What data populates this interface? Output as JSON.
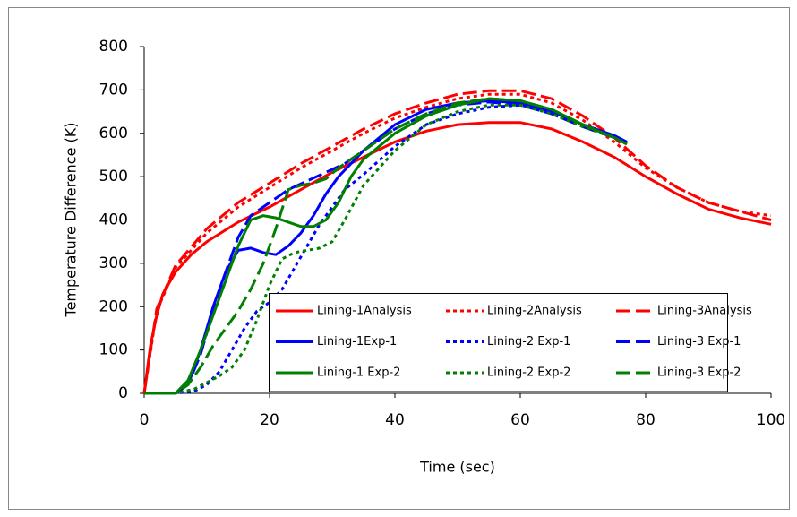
{
  "chart_data": {
    "type": "line",
    "xlabel": "Time (sec)",
    "ylabel": "Temperature Difference (K)",
    "xlim": [
      0,
      100
    ],
    "xticks": [
      0,
      20,
      40,
      60,
      80,
      100
    ],
    "ylim": [
      0,
      800
    ],
    "yticks": [
      0,
      100,
      200,
      300,
      400,
      500,
      600,
      700,
      800
    ],
    "grid": false,
    "legend": "lower right",
    "series": [
      {
        "name": "Lining-1Analysis",
        "color": "#ff0000",
        "dash": "solid",
        "x": [
          0,
          1,
          2,
          3,
          5,
          7.5,
          10,
          15,
          20,
          25,
          30,
          35,
          40,
          45,
          50,
          55,
          60,
          65,
          70,
          75,
          80,
          85,
          90,
          95,
          100
        ],
        "values": [
          0,
          110,
          180,
          230,
          280,
          320,
          350,
          395,
          430,
          470,
          510,
          545,
          580,
          605,
          620,
          625,
          625,
          610,
          580,
          545,
          500,
          460,
          425,
          405,
          390
        ]
      },
      {
        "name": "Lining-2Analysis",
        "color": "#ff0000",
        "dash": "dot",
        "x": [
          0,
          2,
          5,
          10,
          15,
          20,
          25,
          30,
          35,
          40,
          45,
          50,
          55,
          60,
          65,
          70,
          75,
          80,
          85,
          90,
          95,
          100
        ],
        "values": [
          0,
          190,
          290,
          370,
          430,
          475,
          520,
          560,
          600,
          635,
          660,
          680,
          690,
          690,
          670,
          630,
          580,
          520,
          475,
          440,
          420,
          410
        ]
      },
      {
        "name": "Lining-3Analysis",
        "color": "#ff0000",
        "dash": "dash",
        "x": [
          0,
          2,
          5,
          10,
          15,
          20,
          25,
          30,
          35,
          40,
          45,
          50,
          55,
          60,
          65,
          70,
          75,
          80,
          85,
          90,
          95,
          100
        ],
        "values": [
          0,
          195,
          295,
          380,
          440,
          485,
          530,
          570,
          610,
          645,
          670,
          690,
          698,
          698,
          680,
          640,
          590,
          525,
          475,
          440,
          420,
          400
        ]
      },
      {
        "name": "Lining-1Exp-1",
        "color": "#0000ff",
        "dash": "solid",
        "x": [
          0,
          5,
          7,
          9,
          11,
          13,
          15,
          17,
          19,
          21,
          23,
          25,
          27,
          29,
          31,
          33,
          35,
          40,
          45,
          50,
          55,
          60,
          65,
          70,
          75,
          77
        ],
        "values": [
          0,
          0,
          20,
          100,
          200,
          280,
          330,
          335,
          325,
          320,
          340,
          370,
          410,
          460,
          500,
          530,
          560,
          620,
          655,
          670,
          675,
          670,
          650,
          620,
          595,
          580
        ]
      },
      {
        "name": "Lining-2 Exp-1",
        "color": "#0000ff",
        "dash": "dot",
        "x": [
          0,
          5,
          8,
          10,
          12,
          14,
          16,
          18,
          20,
          22,
          24,
          26,
          28,
          30,
          32,
          35,
          40,
          45,
          50,
          55,
          60,
          65,
          70,
          75,
          77
        ],
        "values": [
          0,
          0,
          5,
          20,
          50,
          100,
          150,
          190,
          210,
          240,
          290,
          340,
          390,
          430,
          470,
          505,
          570,
          620,
          645,
          660,
          665,
          650,
          620,
          590,
          580
        ]
      },
      {
        "name": "Lining-3 Exp-1",
        "color": "#0000ff",
        "dash": "dash",
        "x": [
          0,
          5,
          7,
          9,
          11,
          13,
          15,
          17,
          20,
          23,
          26,
          29,
          32,
          35,
          40,
          45,
          50,
          55,
          60,
          65,
          70,
          75,
          77
        ],
        "values": [
          0,
          0,
          20,
          90,
          190,
          280,
          360,
          410,
          440,
          470,
          490,
          510,
          530,
          560,
          610,
          645,
          665,
          672,
          665,
          645,
          615,
          590,
          575
        ]
      },
      {
        "name": "Lining-1 Exp-2",
        "color": "#008000",
        "dash": "solid",
        "x": [
          0,
          5,
          7,
          9,
          11,
          13,
          15,
          17,
          19,
          21,
          23,
          25,
          27,
          29,
          31,
          33,
          35,
          40,
          45,
          50,
          55,
          60,
          65,
          70,
          75,
          77
        ],
        "values": [
          0,
          0,
          30,
          100,
          180,
          260,
          340,
          400,
          410,
          405,
          395,
          385,
          385,
          400,
          440,
          500,
          540,
          600,
          640,
          665,
          680,
          675,
          655,
          620,
          590,
          575
        ]
      },
      {
        "name": "Lining-2 Exp-2",
        "color": "#008000",
        "dash": "dot",
        "x": [
          0,
          5,
          8,
          10,
          12,
          14,
          16,
          18,
          20,
          22,
          24,
          26,
          28,
          30,
          32,
          35,
          40,
          45,
          50,
          55,
          60,
          65,
          70,
          75,
          77
        ],
        "values": [
          0,
          0,
          10,
          25,
          40,
          60,
          100,
          170,
          250,
          310,
          325,
          330,
          335,
          350,
          400,
          480,
          560,
          620,
          650,
          665,
          665,
          645,
          615,
          590,
          575
        ]
      },
      {
        "name": "Lining-3 Exp-2",
        "color": "#008000",
        "dash": "dash",
        "x": [
          0,
          5,
          7,
          9,
          11,
          13,
          15,
          17,
          19,
          21,
          23,
          25,
          27,
          29,
          31,
          33,
          35,
          40,
          45,
          50,
          55,
          60,
          65,
          70,
          75,
          77
        ],
        "values": [
          0,
          0,
          20,
          60,
          110,
          150,
          190,
          240,
          300,
          380,
          470,
          480,
          485,
          495,
          520,
          540,
          560,
          610,
          645,
          670,
          680,
          675,
          655,
          620,
          590,
          575
        ]
      }
    ]
  }
}
